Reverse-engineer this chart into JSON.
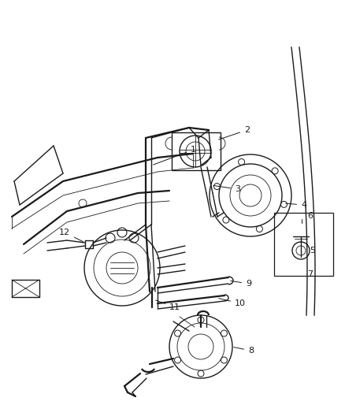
{
  "bg_color": "#ffffff",
  "line_color": "#1a1a1a",
  "fig_width": 4.38,
  "fig_height": 5.33,
  "dpi": 100,
  "lw_main": 1.0,
  "lw_thick": 1.6,
  "lw_thin": 0.6,
  "xlim": [
    0,
    438
  ],
  "ylim": [
    0,
    533
  ]
}
